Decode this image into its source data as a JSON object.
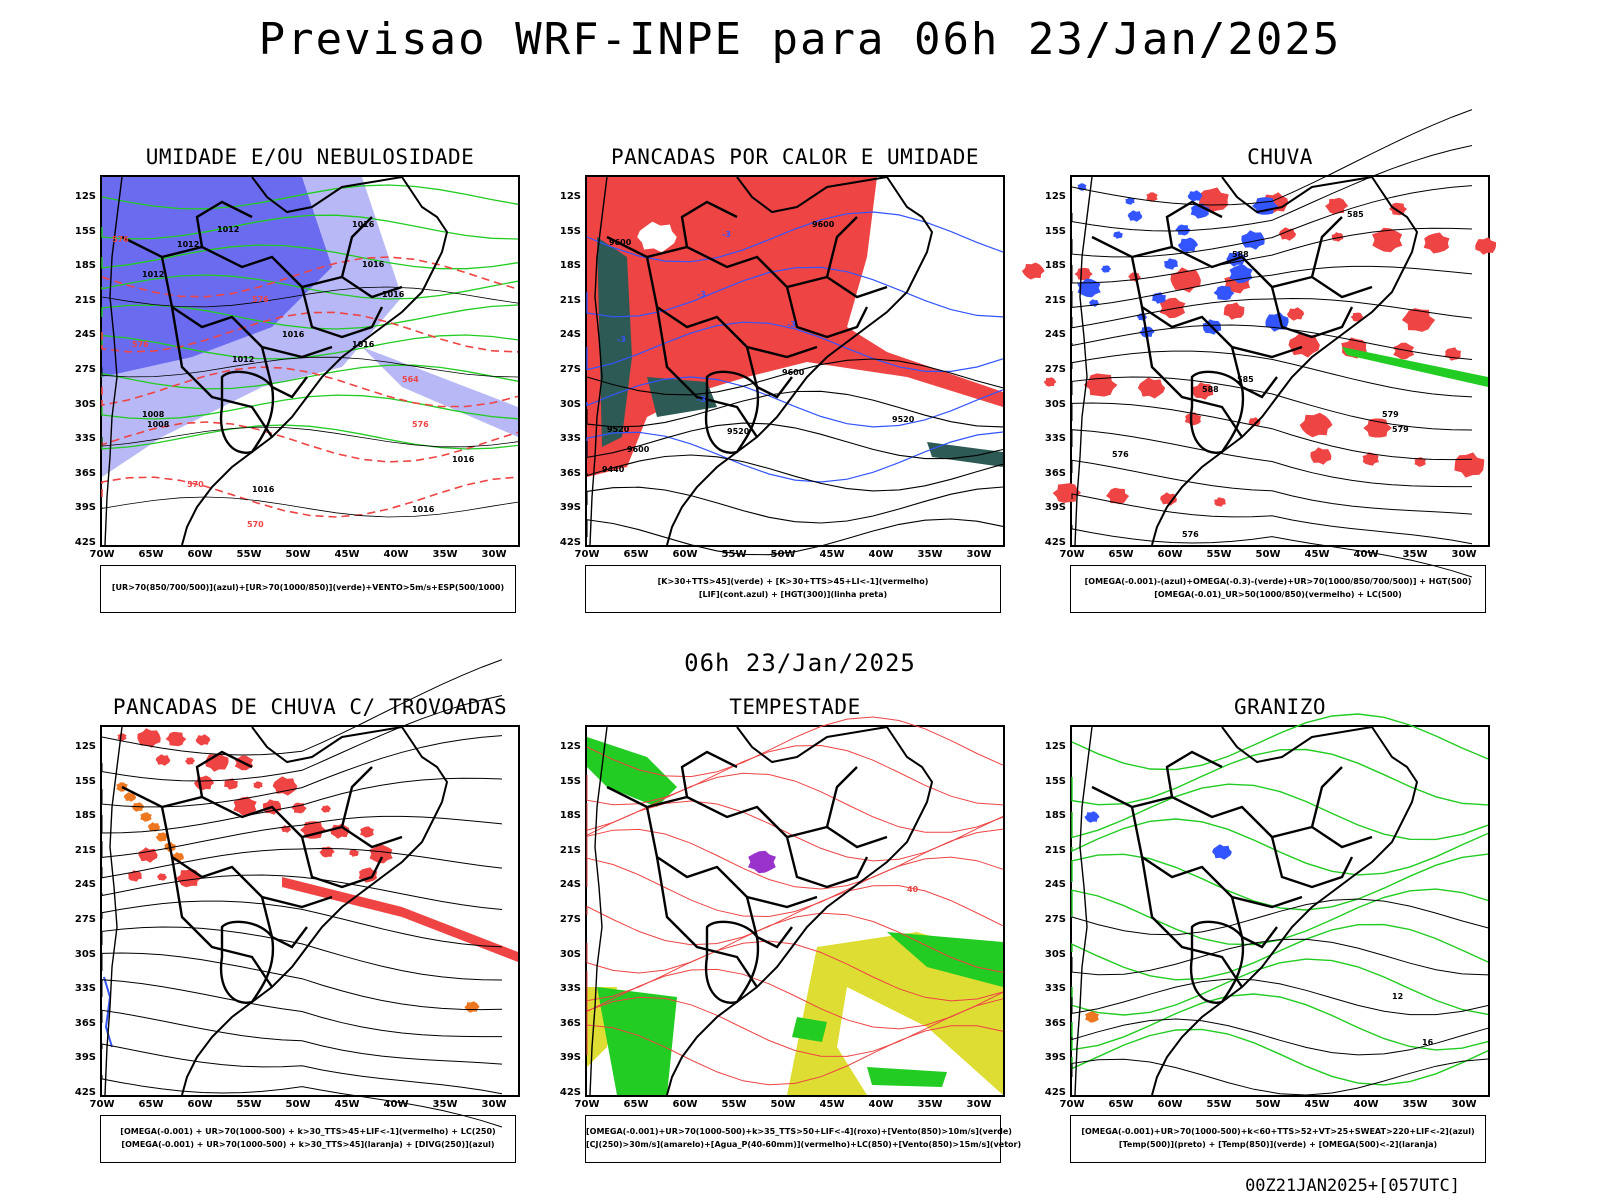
{
  "main_title": "Previsao WRF-INPE  para 06h 23/Jan/2025",
  "mid_title": "06h 23/Jan/2025",
  "footer": "00Z21JAN2025+[057UTC]",
  "lat_labels": [
    "12S",
    "15S",
    "18S",
    "21S",
    "24S",
    "27S",
    "30S",
    "33S",
    "36S",
    "39S",
    "42S"
  ],
  "lon_labels": [
    "70W",
    "65W",
    "60W",
    "55W",
    "50W",
    "45W",
    "40W",
    "35W",
    "30W"
  ],
  "colors": {
    "blue_dark": "#6b6bf0",
    "blue_light": "#b8b8f6",
    "green": "#22cc22",
    "red": "#ee4444",
    "dark_teal": "#2e5a55",
    "blue_line": "#3355ff",
    "yellow": "#dddd33",
    "orange": "#ee7722",
    "purple": "#9933cc"
  },
  "panels": [
    {
      "title": "UMIDADE E/OU NEBULOSIDADE",
      "legend": [
        "[UR>70(850/700/500)](azul)+[UR>70(1000/850)](verde)+VENTO>5m/s+ESP(500/1000)"
      ],
      "contour_labels": [
        "1012",
        "1012",
        "1016",
        "1012",
        "1016",
        "1016",
        "1016",
        "1016",
        "1012",
        "1016",
        "1008",
        "1008",
        "1016",
        "1016",
        "576",
        "576",
        "576",
        "570",
        "564",
        "576",
        "570"
      ]
    },
    {
      "title": "PANCADAS POR CALOR E UMIDADE",
      "legend": [
        "[K>30+TTS>45](verde) + [K>30+TTS>45+LI<-1](vermelho)",
        "[LIF](cont.azul) + [HGT(300)](linha preta)"
      ],
      "contour_labels": [
        "9600",
        "9600",
        "9600",
        "9600",
        "9520",
        "9520",
        "9520",
        "9440",
        "-3",
        "-3",
        "-3",
        "-3",
        "-3"
      ]
    },
    {
      "title": "CHUVA",
      "legend": [
        "[OMEGA(-0.001)-(azul)+OMEGA(-0.3)-(verde)+UR>70(1000/850/700/500)] + HGT(500)",
        "[OMEGA(-0.01)_UR>50(1000/850)(vermelho) + LC(500)"
      ],
      "contour_labels": [
        "588",
        "588",
        "585",
        "585",
        "579",
        "576",
        "576",
        "579"
      ]
    },
    {
      "title": "PANCADAS DE CHUVA C/ TROVOADAS",
      "legend": [
        "[OMEGA(-0.001) + UR>70(1000-500) + k>30_TTS>45+LIF<-1](vermelho) + LC(250)",
        "[OMEGA(-0.001) + UR>70(1000-500) + k>30_TTS>45](laranja) + [DIVG(250)](azul)"
      ],
      "contour_labels": []
    },
    {
      "title": "TEMPESTADE",
      "legend": [
        "[OMEGA(-0.001)+UR>70(1000-500)+k>35_TTS>50+LIF<-4](roxo)+[Vento(850)>10m/s](verde)",
        "[CJ(250)>30m/s](amarelo)+[Agua_P(40-60mm)](vermelho)+LC(850)+[Vento(850)>15m/s](vetor)"
      ],
      "contour_labels": [
        "40"
      ]
    },
    {
      "title": "GRANIZO",
      "legend": [
        "[OMEGA(-0.001)+UR>70(1000-500)+k<60+TTS>52+VT>25+SWEAT>220+LIF<-2](azul)",
        "[Temp(500)](preto) + [Temp(850)](verde) + [OMEGA(500)<-2](laranja)"
      ],
      "contour_labels": [
        "12",
        "16"
      ]
    }
  ]
}
